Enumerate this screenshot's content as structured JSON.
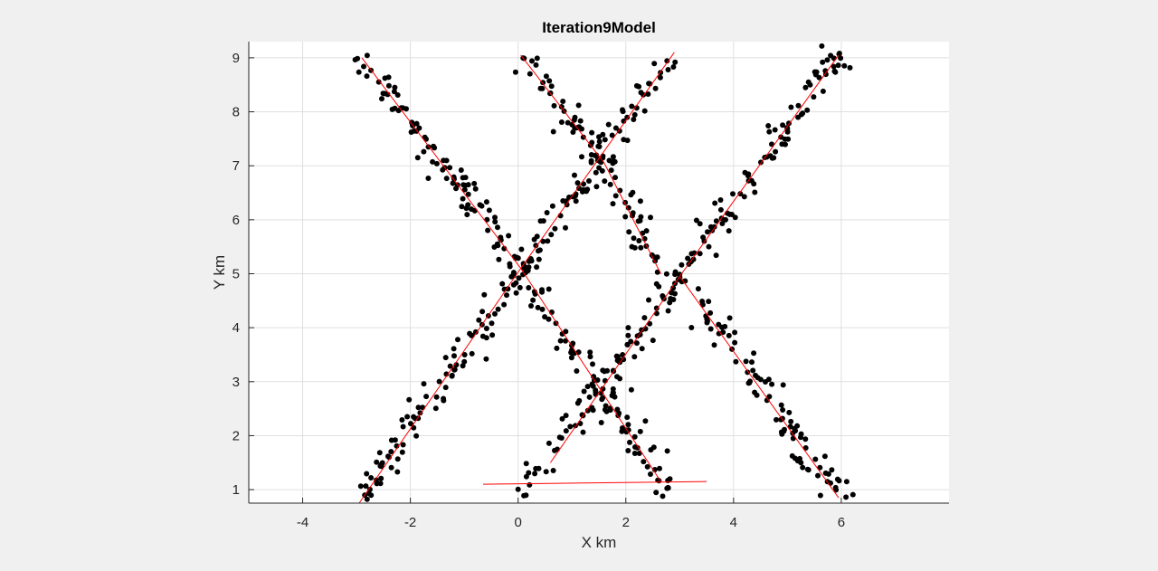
{
  "chart_data": {
    "type": "scatter",
    "title": "Iteration9Model",
    "xlabel": "X km",
    "ylabel": "Y km",
    "xlim": [
      -5,
      8
    ],
    "ylim": [
      0.75,
      9.3
    ],
    "xticks": [
      -4,
      -2,
      0,
      2,
      4,
      6
    ],
    "yticks": [
      1,
      2,
      3,
      4,
      5,
      6,
      7,
      8,
      9
    ],
    "grid": true,
    "colors": {
      "points": "#000000",
      "fit_lines": "#ff0000",
      "plot_background": "#ffffff",
      "figure_background": "#f0f0f0",
      "grid": "#dfdfdf"
    },
    "fit_lines": [
      {
        "x": [
          -2.9,
          0.05
        ],
        "y": [
          9.0,
          5.1
        ]
      },
      {
        "x": [
          -2.95,
          0.05
        ],
        "y": [
          0.75,
          5.1
        ]
      },
      {
        "x": [
          0.05,
          2.65
        ],
        "y": [
          5.1,
          1.15
        ]
      },
      {
        "x": [
          0.05,
          2.9
        ],
        "y": [
          5.1,
          9.1
        ]
      },
      {
        "x": [
          0.05,
          1.6
        ],
        "y": [
          9.05,
          7.05
        ]
      },
      {
        "x": [
          1.6,
          2.65
        ],
        "y": [
          7.05,
          5.0
        ]
      },
      {
        "x": [
          0.6,
          3.0
        ],
        "y": [
          1.5,
          4.95
        ]
      },
      {
        "x": [
          3.0,
          5.95
        ],
        "y": [
          4.95,
          9.05
        ]
      },
      {
        "x": [
          3.0,
          5.95
        ],
        "y": [
          4.95,
          0.85
        ]
      },
      {
        "x": [
          -0.65,
          3.5
        ],
        "y": [
          1.1,
          1.15
        ]
      }
    ],
    "point_clusters": [
      {
        "x": [
          -2.9,
          0.05
        ],
        "y": [
          9.0,
          5.1
        ],
        "n": 95,
        "spread": 0.22
      },
      {
        "x": [
          -2.95,
          0.05
        ],
        "y": [
          0.75,
          5.1
        ],
        "n": 95,
        "spread": 0.22
      },
      {
        "x": [
          0.05,
          2.65
        ],
        "y": [
          5.1,
          1.15
        ],
        "n": 85,
        "spread": 0.22
      },
      {
        "x": [
          0.05,
          2.9
        ],
        "y": [
          5.1,
          9.1
        ],
        "n": 85,
        "spread": 0.22
      },
      {
        "x": [
          0.05,
          1.6
        ],
        "y": [
          9.05,
          7.05
        ],
        "n": 45,
        "spread": 0.22
      },
      {
        "x": [
          1.6,
          2.65
        ],
        "y": [
          7.05,
          5.0
        ],
        "n": 40,
        "spread": 0.22
      },
      {
        "x": [
          0.6,
          3.0
        ],
        "y": [
          1.5,
          4.95
        ],
        "n": 70,
        "spread": 0.22
      },
      {
        "x": [
          3.0,
          5.95
        ],
        "y": [
          4.95,
          9.05
        ],
        "n": 95,
        "spread": 0.22
      },
      {
        "x": [
          3.0,
          5.95
        ],
        "y": [
          4.95,
          0.85
        ],
        "n": 95,
        "spread": 0.22
      },
      {
        "x": [
          0.0,
          0.6
        ],
        "y": [
          0.9,
          1.5
        ],
        "n": 12,
        "spread": 0.2
      },
      {
        "x": [
          2.6,
          2.8
        ],
        "y": [
          0.8,
          1.2
        ],
        "n": 6,
        "spread": 0.1
      }
    ]
  }
}
